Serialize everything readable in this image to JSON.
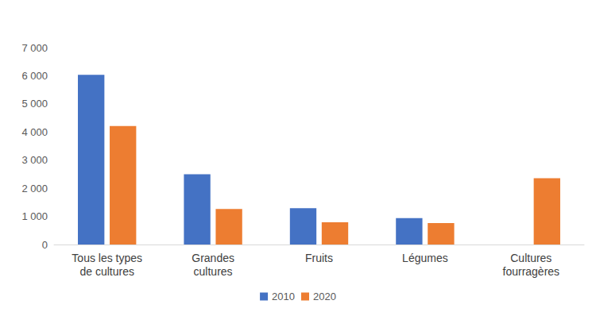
{
  "chart_data": {
    "type": "bar",
    "categories": [
      "Tous les types\nde cultures",
      "Grandes\ncultures",
      "Fruits",
      "Légumes",
      "Cultures\nfourragères"
    ],
    "series": [
      {
        "name": "2010",
        "color": "#4472c4",
        "values": [
          6030,
          2500,
          1290,
          940,
          null
        ]
      },
      {
        "name": "2020",
        "color": "#ed7d31",
        "values": [
          4210,
          1260,
          790,
          760,
          2360
        ]
      }
    ],
    "ylim": [
      0,
      7000
    ],
    "yticks": [
      0,
      {
        "value": 1000,
        "label": "1 000"
      },
      {
        "value": 2000,
        "label": "2 000"
      },
      {
        "value": 3000,
        "label": "3 000"
      },
      {
        "value": 4000,
        "label": "4 000"
      },
      {
        "value": 5000,
        "label": "5 000"
      },
      {
        "value": 6000,
        "label": "6 000"
      },
      {
        "value": 7000,
        "label": "7 000"
      }
    ],
    "grid": false,
    "legend": "bottom"
  }
}
